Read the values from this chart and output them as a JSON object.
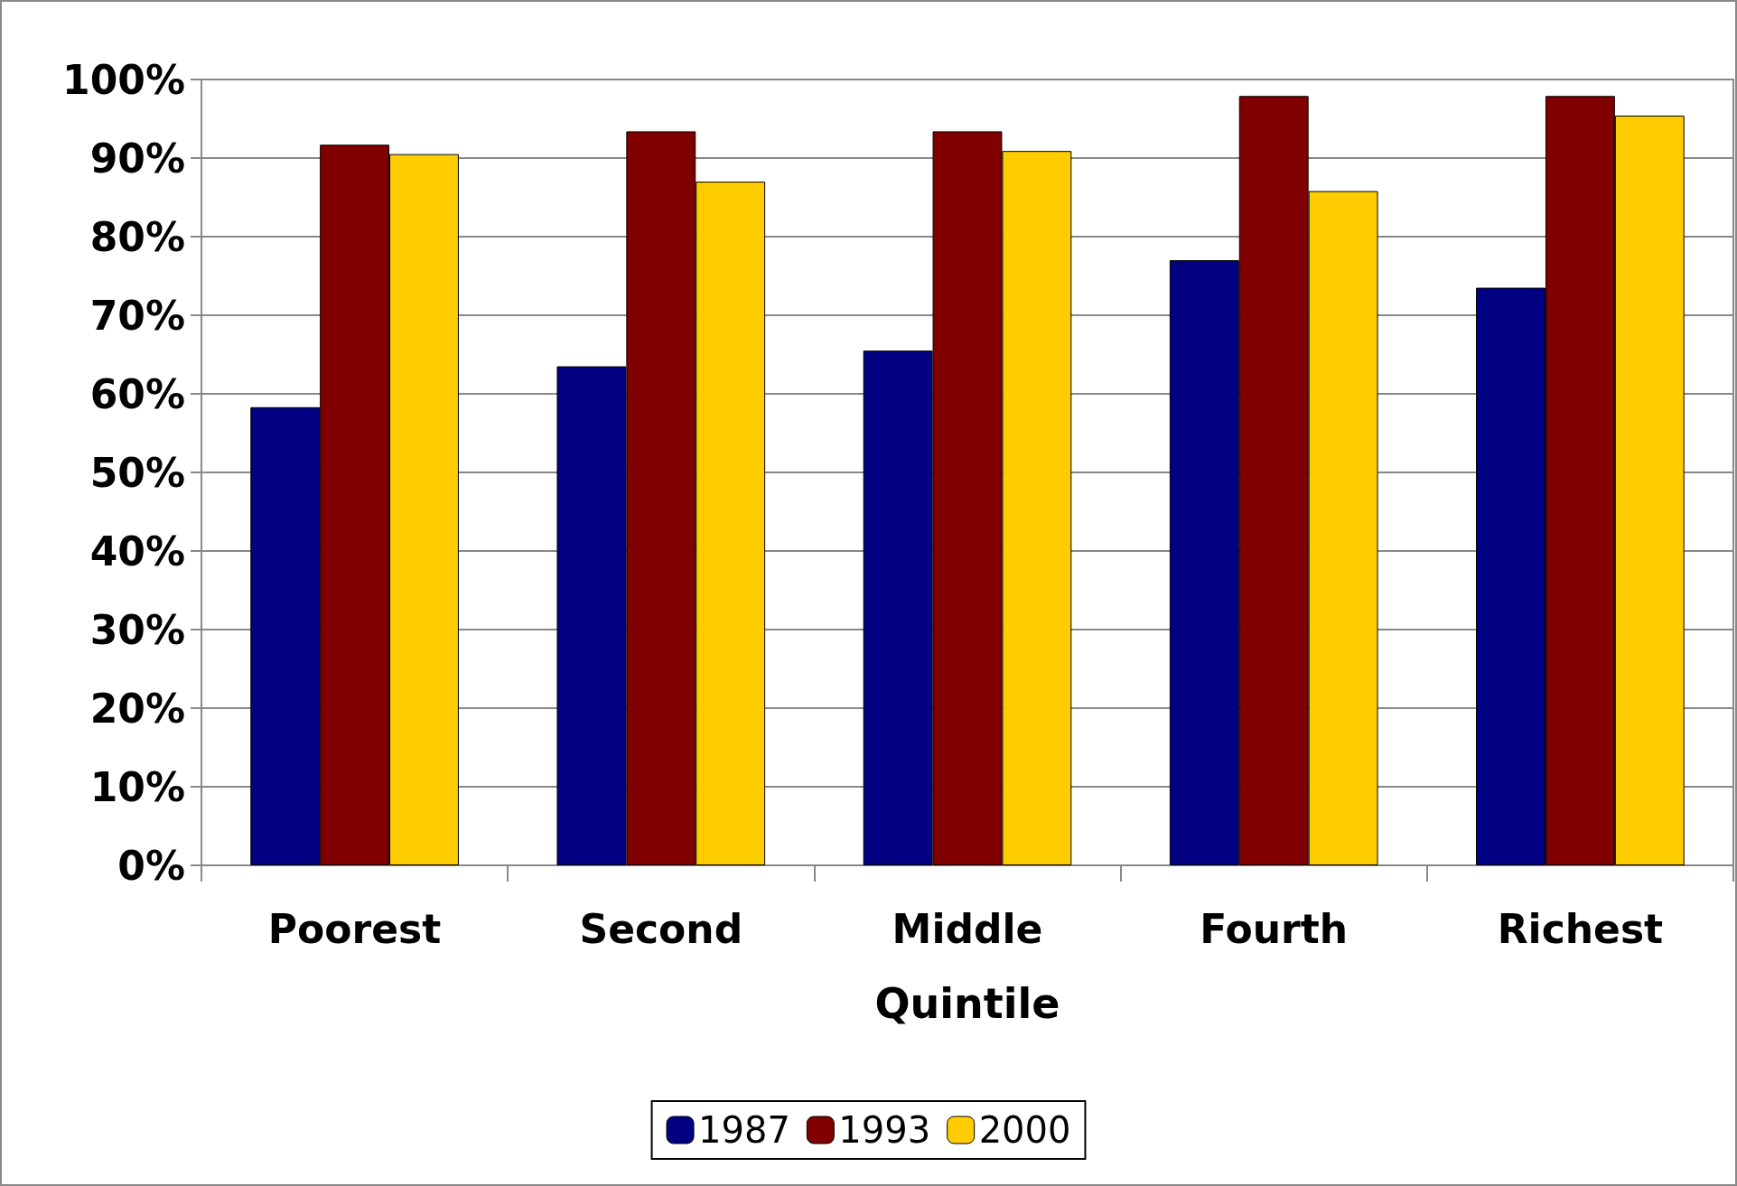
{
  "chart_data": {
    "type": "bar",
    "xlabel": "Quintile",
    "categories": [
      "Poorest",
      "Second",
      "Middle",
      "Fourth",
      "Richest"
    ],
    "series": [
      {
        "name": "1987",
        "color": "#000080",
        "values": [
          58.3,
          63.5,
          65.5,
          77.0,
          73.5
        ]
      },
      {
        "name": "1993",
        "color": "#800000",
        "values": [
          91.7,
          93.4,
          93.4,
          97.9,
          97.9
        ]
      },
      {
        "name": "2000",
        "color": "#ffcc00",
        "values": [
          90.5,
          87.0,
          90.9,
          85.8,
          95.4
        ]
      }
    ],
    "ylim": [
      0,
      100
    ],
    "yticks": [
      {
        "value": 0,
        "label": "0%"
      },
      {
        "value": 10,
        "label": "10%"
      },
      {
        "value": 20,
        "label": "20%"
      },
      {
        "value": 30,
        "label": "30%"
      },
      {
        "value": 40,
        "label": "40%"
      },
      {
        "value": 50,
        "label": "50%"
      },
      {
        "value": 60,
        "label": "60%"
      },
      {
        "value": 70,
        "label": "70%"
      },
      {
        "value": 80,
        "label": "80%"
      },
      {
        "value": 90,
        "label": "90%"
      },
      {
        "value": 100,
        "label": "100%"
      }
    ],
    "grid": "y",
    "legend": "bottom"
  }
}
